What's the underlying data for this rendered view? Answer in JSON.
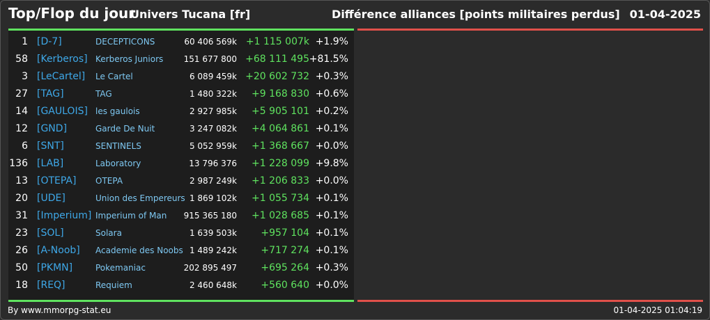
{
  "header": {
    "title": "Top/Flop du jour",
    "universe": "Univers Tucana [fr]",
    "metric": "Différence alliances [points militaires perdus]",
    "date": "01-04-2025"
  },
  "colors": {
    "top_bar": "#5fe35f",
    "flop_bar": "#e0504a",
    "tag": "#3ea8e8",
    "name": "#7ec8f2",
    "positive": "#5fe35f"
  },
  "rows": [
    {
      "rank": "1",
      "tag": "[D-7]",
      "name": "DECEPTICONS",
      "points": "60 406 569k",
      "diff": "+1 115 007k",
      "pct": "+1.9%"
    },
    {
      "rank": "58",
      "tag": "[Kerberos]",
      "name": "Kerberos Juniors",
      "points": "151 677 800",
      "diff": "+68 111 495",
      "pct": "+81.5%"
    },
    {
      "rank": "3",
      "tag": "[LeCartel]",
      "name": "Le Cartel",
      "points": "6 089 459k",
      "diff": "+20 602 732",
      "pct": "+0.3%"
    },
    {
      "rank": "27",
      "tag": "[TAG]",
      "name": "TAG",
      "points": "1 480 322k",
      "diff": "+9 168 830",
      "pct": "+0.6%"
    },
    {
      "rank": "14",
      "tag": "[GAULOIS]",
      "name": "les gaulois",
      "points": "2 927 985k",
      "diff": "+5 905 101",
      "pct": "+0.2%"
    },
    {
      "rank": "12",
      "tag": "[GND]",
      "name": "Garde De Nuit",
      "points": "3 247 082k",
      "diff": "+4 064 861",
      "pct": "+0.1%"
    },
    {
      "rank": "6",
      "tag": "[SNT]",
      "name": "SENTINELS",
      "points": "5 052 959k",
      "diff": "+1 368 667",
      "pct": "+0.0%"
    },
    {
      "rank": "136",
      "tag": "[LAB]",
      "name": "Laboratory",
      "points": "13 796 376",
      "diff": "+1 228 099",
      "pct": "+9.8%"
    },
    {
      "rank": "13",
      "tag": "[OTEPA]",
      "name": "OTEPA",
      "points": "2 987 249k",
      "diff": "+1 206 833",
      "pct": "+0.0%"
    },
    {
      "rank": "20",
      "tag": "[UDE]",
      "name": "Union des Empereurs",
      "points": "1 869 102k",
      "diff": "+1 055 734",
      "pct": "+0.1%"
    },
    {
      "rank": "31",
      "tag": "[Imperium]",
      "name": "Imperium of Man",
      "points": "915 365 180",
      "diff": "+1 028 685",
      "pct": "+0.1%"
    },
    {
      "rank": "23",
      "tag": "[SOL]",
      "name": "Solara",
      "points": "1 639 503k",
      "diff": "+957 104",
      "pct": "+0.1%"
    },
    {
      "rank": "26",
      "tag": "[A-Noob]",
      "name": "Academie des Noobs",
      "points": "1 489 242k",
      "diff": "+717 274",
      "pct": "+0.1%"
    },
    {
      "rank": "50",
      "tag": "[PKMN]",
      "name": "Pokemaniac",
      "points": "202 895 497",
      "diff": "+695 264",
      "pct": "+0.3%"
    },
    {
      "rank": "18",
      "tag": "[REQ]",
      "name": "Requiem",
      "points": "2 460 648k",
      "diff": "+560 640",
      "pct": "+0.0%"
    }
  ],
  "footer": {
    "source": "By www.mmorpg-stat.eu",
    "timestamp": "01-04-2025 01:04:19"
  }
}
